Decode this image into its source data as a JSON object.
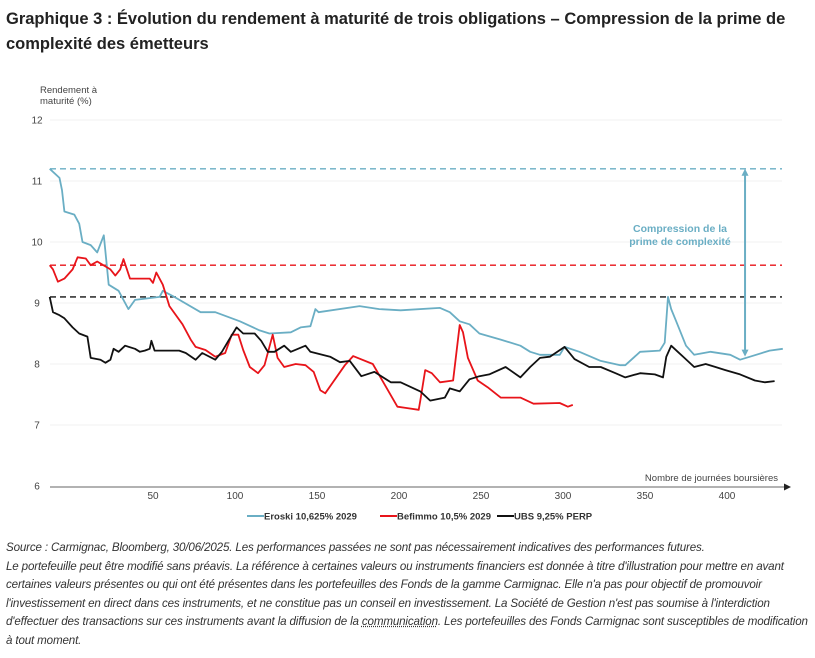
{
  "title": "Graphique 3 : Évolution du rendement à maturité de trois obligations – Compression de la prime de complexité des émetteurs",
  "footer": {
    "source": "Source : Carmignac, Bloomberg, 30/06/2025. Les performances passées ne sont pas nécessairement indicatives des performances futures.",
    "disclaimer_before": "Le portefeuille peut être modifié sans préavis. La référence à certaines valeurs ou instruments financiers est donnée à titre d'illustration pour mettre en avant certaines valeurs présentes ou qui ont été présentes dans les portefeuilles des Fonds de la gamme Carmignac. Elle n'a pas pour objectif de promouvoir l'investissement en direct dans ces instruments, et ne constitue pas un conseil en investissement. La Société de Gestion n'est pas soumise à l'interdiction d'effectuer des transactions sur ces instruments avant la diffusion de la ",
    "disclaimer_link": "communication",
    "disclaimer_after": ". Les portefeuilles des Fonds Carmignac sont susceptibles de modification à tout moment."
  },
  "chart_data": {
    "type": "line",
    "ylabel": [
      "Rendement à",
      "maturité (%)"
    ],
    "xlabel": "Nombre de journées boursières",
    "ylim": [
      6,
      12
    ],
    "xlim": [
      -13,
      435
    ],
    "yticks": [
      6,
      7,
      8,
      9,
      10,
      11,
      12
    ],
    "xticks": [
      50,
      100,
      150,
      200,
      250,
      300,
      350,
      400
    ],
    "grid": "horizontal",
    "legend_position": "bottom",
    "series": [
      {
        "name": "Eroski 10,625% 2029",
        "color": "#6aaec4",
        "reference_level": 11.2,
        "x": [
          -13,
          -7,
          -5.5,
          -4,
          2,
          5,
          7,
          12,
          16,
          20,
          23,
          29,
          35,
          39,
          54,
          56,
          63,
          79,
          88,
          103,
          115,
          121,
          134,
          140,
          146,
          149,
          151,
          176,
          188,
          201,
          225,
          231,
          237,
          243,
          249,
          262,
          274,
          280,
          286,
          298,
          301,
          310,
          323,
          335,
          338,
          347,
          359,
          362,
          364,
          366,
          369,
          375,
          380,
          390,
          402,
          408,
          414,
          426,
          434
        ],
        "y": [
          11.2,
          11.05,
          10.85,
          10.5,
          10.45,
          10.3,
          10.0,
          9.95,
          9.83,
          10.11,
          9.3,
          9.2,
          8.9,
          9.05,
          9.1,
          9.2,
          9.1,
          8.85,
          8.85,
          8.7,
          8.55,
          8.5,
          8.52,
          8.6,
          8.62,
          8.9,
          8.85,
          8.95,
          8.9,
          8.88,
          8.92,
          8.85,
          8.7,
          8.65,
          8.5,
          8.4,
          8.3,
          8.2,
          8.15,
          8.15,
          8.28,
          8.2,
          8.05,
          7.98,
          7.98,
          8.2,
          8.22,
          8.35,
          9.1,
          8.9,
          8.7,
          8.3,
          8.15,
          8.2,
          8.15,
          8.07,
          8.12,
          8.22,
          8.25
        ]
      },
      {
        "name": "Befimmo 10,5% 2029",
        "color": "#e8141a",
        "reference_level": 9.62,
        "x": [
          -13,
          -11,
          -8,
          -4,
          1,
          4,
          9,
          12,
          16,
          24,
          27,
          30,
          32,
          36,
          48,
          50,
          52,
          56,
          60,
          68,
          73,
          76,
          82,
          88,
          94,
          98,
          102,
          105,
          109,
          114,
          118,
          123,
          126,
          130,
          137,
          143,
          148,
          152,
          155,
          161,
          167,
          172,
          184,
          199,
          204,
          212,
          213,
          216,
          220,
          225,
          233,
          237,
          239,
          242,
          248,
          254,
          262,
          274,
          282,
          298,
          303,
          306
        ],
        "y": [
          9.62,
          9.55,
          9.35,
          9.4,
          9.55,
          9.75,
          9.73,
          9.62,
          9.68,
          9.55,
          9.45,
          9.55,
          9.72,
          9.4,
          9.4,
          9.33,
          9.5,
          9.3,
          8.95,
          8.65,
          8.4,
          8.28,
          8.23,
          8.12,
          8.18,
          8.48,
          8.48,
          8.23,
          7.95,
          7.85,
          7.98,
          8.48,
          8.1,
          7.95,
          8.0,
          7.98,
          7.87,
          7.57,
          7.52,
          7.75,
          7.98,
          8.13,
          8.0,
          7.3,
          7.28,
          7.25,
          7.4,
          7.9,
          7.85,
          7.7,
          7.73,
          8.64,
          8.52,
          8.1,
          7.73,
          7.62,
          7.45,
          7.45,
          7.35,
          7.36,
          7.3,
          7.33
        ]
      },
      {
        "name": "UBS 9,25% PERP",
        "color": "#111111",
        "reference_level": 9.1,
        "x": [
          -13,
          -11,
          -7,
          -4,
          1,
          5,
          10,
          12,
          18,
          21,
          24,
          26,
          29,
          33,
          39,
          42,
          45,
          48,
          49,
          51,
          66,
          70,
          76,
          80,
          88,
          92,
          96,
          101,
          105,
          112,
          116,
          120,
          124,
          130,
          134,
          143,
          146,
          158,
          164,
          170,
          177,
          185,
          195,
          201,
          213,
          219,
          228,
          231,
          237,
          243,
          249,
          255,
          265,
          274,
          280,
          286,
          292,
          301,
          307,
          316,
          323,
          332,
          338,
          347,
          356,
          361,
          363,
          366,
          370,
          374,
          380,
          387,
          393,
          399,
          408,
          417,
          423,
          429
        ],
        "y": [
          9.1,
          8.85,
          8.8,
          8.75,
          8.6,
          8.5,
          8.45,
          8.1,
          8.07,
          8.02,
          8.07,
          8.25,
          8.2,
          8.3,
          8.25,
          8.2,
          8.22,
          8.25,
          8.38,
          8.22,
          8.22,
          8.18,
          8.07,
          8.18,
          8.07,
          8.2,
          8.38,
          8.6,
          8.5,
          8.5,
          8.38,
          8.2,
          8.2,
          8.3,
          8.2,
          8.3,
          8.2,
          8.12,
          8.03,
          8.05,
          7.8,
          7.87,
          7.7,
          7.7,
          7.55,
          7.4,
          7.45,
          7.6,
          7.55,
          7.75,
          7.8,
          7.83,
          7.95,
          7.78,
          7.95,
          8.1,
          8.12,
          8.28,
          8.08,
          7.95,
          7.95,
          7.85,
          7.78,
          7.85,
          7.83,
          7.78,
          8.12,
          8.3,
          8.2,
          8.1,
          7.95,
          8.0,
          7.95,
          7.9,
          7.83,
          7.73,
          7.7,
          7.72
        ]
      }
    ],
    "annotation": {
      "text": [
        "Compression de la",
        "prime de complexité"
      ],
      "arrow_x": 411,
      "arrow_from": 11.2,
      "arrow_to": 8.12,
      "color": "#6aaec4"
    }
  }
}
